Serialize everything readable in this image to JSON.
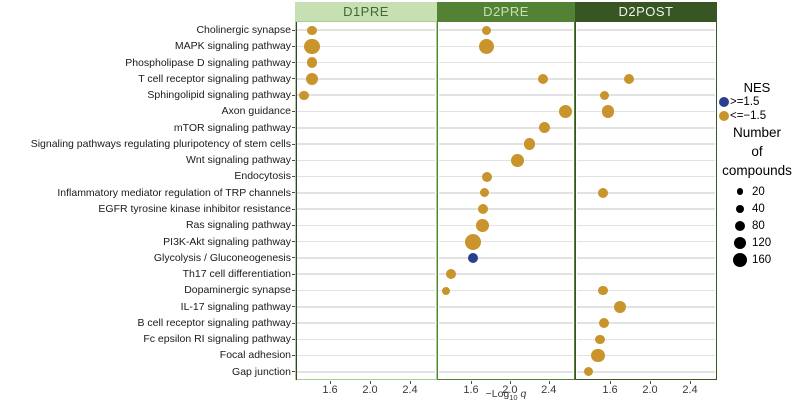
{
  "chart_data": {
    "type": "scatter",
    "subtype": "bubble-dot-plot",
    "xlabel": "−Log10 q",
    "xlabel_parts": {
      "prefix": "−Log",
      "subscript": "10",
      "italic_suffix": "q"
    },
    "x_ticks": [
      "1.6",
      "2.0",
      "2.4"
    ],
    "x_tick_values": [
      1.6,
      2.0,
      2.4
    ],
    "x_range": [
      1.26,
      2.66
    ],
    "grid": "horizontal",
    "pathways": [
      "Cholinergic synapse",
      "MAPK signaling pathway",
      "Phospholipase D signaling pathway",
      "T cell receptor signaling pathway",
      "Sphingolipid signaling pathway",
      "Axon guidance",
      "mTOR signaling pathway",
      "Signaling pathways regulating pluripotency of stem cells",
      "Wnt signaling pathway",
      "Endocytosis",
      "Inflammatory mediator regulation of TRP channels",
      "EGFR tyrosine kinase inhibitor resistance",
      "Ras signaling pathway",
      "PI3K-Akt signaling pathway",
      "Glycolysis / Gluconeogenesis",
      "Th17 cell differentiation",
      "Dopaminergic synapse",
      "IL-17 signaling pathway",
      "B cell receptor signaling pathway",
      "Fc epsilon RI signaling pathway",
      "Focal adhesion",
      "Gap junction"
    ],
    "colors": {
      "nes_positive": "#2B3F8F",
      "nes_negative": "#C8942B",
      "gridline": "#E2E2E2",
      "axis_text": "#3A3A3A"
    },
    "panels": [
      {
        "label": "D1PRE",
        "header_bg": "#C6E0B4",
        "header_text": "#44682D",
        "border": "#A8D08D",
        "points": [
          {
            "pathway": "Cholinergic synapse",
            "row": 0,
            "x": 1.42,
            "n": 65,
            "nes": "neg"
          },
          {
            "pathway": "MAPK signaling pathway",
            "row": 1,
            "x": 1.42,
            "n": 185,
            "nes": "neg"
          },
          {
            "pathway": "Phospholipase D signaling pathway",
            "row": 2,
            "x": 1.42,
            "n": 95,
            "nes": "neg"
          },
          {
            "pathway": "T cell receptor signaling pathway",
            "row": 3,
            "x": 1.42,
            "n": 120,
            "nes": "neg"
          },
          {
            "pathway": "Sphingolipid signaling pathway",
            "row": 4,
            "x": 1.34,
            "n": 65,
            "nes": "neg"
          }
        ]
      },
      {
        "label": "D2PRE",
        "header_bg": "#548235",
        "header_text": "#C6E0B4",
        "border": "#548235",
        "points": [
          {
            "pathway": "Cholinergic synapse",
            "row": 0,
            "x": 1.76,
            "n": 65,
            "nes": "neg"
          },
          {
            "pathway": "MAPK signaling pathway",
            "row": 1,
            "x": 1.76,
            "n": 185,
            "nes": "neg"
          },
          {
            "pathway": "T cell receptor signaling pathway",
            "row": 3,
            "x": 2.34,
            "n": 80,
            "nes": "neg"
          },
          {
            "pathway": "Axon guidance",
            "row": 5,
            "x": 2.57,
            "n": 145,
            "nes": "neg"
          },
          {
            "pathway": "mTOR signaling pathway",
            "row": 6,
            "x": 2.36,
            "n": 105,
            "nes": "neg"
          },
          {
            "pathway": "Signaling pathways regulating pluripotency of stem cells",
            "row": 7,
            "x": 2.2,
            "n": 105,
            "nes": "neg"
          },
          {
            "pathway": "Wnt signaling pathway",
            "row": 8,
            "x": 2.08,
            "n": 135,
            "nes": "neg"
          },
          {
            "pathway": "Endocytosis",
            "row": 9,
            "x": 1.76,
            "n": 80,
            "nes": "neg"
          },
          {
            "pathway": "Inflammatory mediator regulation of TRP channels",
            "row": 10,
            "x": 1.74,
            "n": 60,
            "nes": "neg"
          },
          {
            "pathway": "EGFR tyrosine kinase inhibitor resistance",
            "row": 11,
            "x": 1.72,
            "n": 80,
            "nes": "neg"
          },
          {
            "pathway": "Ras signaling pathway",
            "row": 12,
            "x": 1.72,
            "n": 135,
            "nes": "neg"
          },
          {
            "pathway": "PI3K-Akt signaling pathway",
            "row": 13,
            "x": 1.62,
            "n": 200,
            "nes": "neg"
          },
          {
            "pathway": "Glycolysis / Gluconeogenesis",
            "row": 14,
            "x": 1.62,
            "n": 80,
            "nes": "pos"
          },
          {
            "pathway": "Th17 cell differentiation",
            "row": 15,
            "x": 1.39,
            "n": 80,
            "nes": "neg"
          },
          {
            "pathway": "Dopaminergic synapse",
            "row": 16,
            "x": 1.34,
            "n": 40,
            "nes": "neg"
          }
        ]
      },
      {
        "label": "D2POST",
        "header_bg": "#375623",
        "header_text": "#EFF5EB",
        "border": "#375623",
        "points": [
          {
            "pathway": "T cell receptor signaling pathway",
            "row": 3,
            "x": 1.79,
            "n": 95,
            "nes": "neg"
          },
          {
            "pathway": "Sphingolipid signaling pathway",
            "row": 4,
            "x": 1.54,
            "n": 60,
            "nes": "neg"
          },
          {
            "pathway": "Axon guidance",
            "row": 5,
            "x": 1.58,
            "n": 135,
            "nes": "neg"
          },
          {
            "pathway": "Inflammatory mediator regulation of TRP channels",
            "row": 10,
            "x": 1.53,
            "n": 80,
            "nes": "neg"
          },
          {
            "pathway": "Dopaminergic synapse",
            "row": 16,
            "x": 1.53,
            "n": 65,
            "nes": "neg"
          },
          {
            "pathway": "IL-17 signaling pathway",
            "row": 17,
            "x": 1.7,
            "n": 120,
            "nes": "neg"
          },
          {
            "pathway": "B cell receptor signaling pathway",
            "row": 18,
            "x": 1.54,
            "n": 95,
            "nes": "neg"
          },
          {
            "pathway": "Fc epsilon RI signaling pathway",
            "row": 19,
            "x": 1.5,
            "n": 65,
            "nes": "neg"
          },
          {
            "pathway": "Focal adhesion",
            "row": 20,
            "x": 1.48,
            "n": 145,
            "nes": "neg"
          },
          {
            "pathway": "Gap junction",
            "row": 21,
            "x": 1.38,
            "n": 60,
            "nes": "neg"
          }
        ]
      }
    ],
    "legend": {
      "nes_title": "NES",
      "nes_items": [
        {
          "label": ">=1.5",
          "nes": "pos"
        },
        {
          "label": "<=−1.5",
          "nes": "neg"
        }
      ],
      "size_title_lines": [
        "Number",
        "of",
        "compounds"
      ],
      "size_items": [
        {
          "label": "20",
          "n": 20
        },
        {
          "label": "40",
          "n": 40
        },
        {
          "label": "80",
          "n": 80
        },
        {
          "label": "120",
          "n": 120
        },
        {
          "label": "160",
          "n": 160
        }
      ]
    }
  }
}
